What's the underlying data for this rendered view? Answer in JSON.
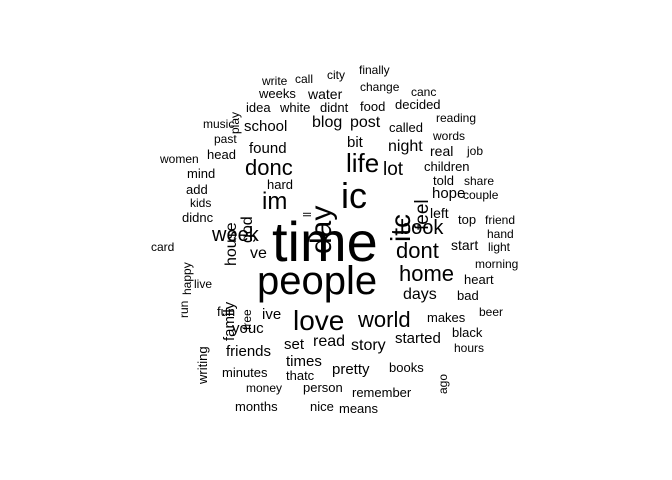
{
  "text_color": "#000000",
  "background_color": "#ffffff",
  "words": [
    {
      "text": "time"
    },
    {
      "text": "people"
    },
    {
      "text": "ic"
    },
    {
      "text": "day"
    },
    {
      "text": "love"
    },
    {
      "text": "life"
    },
    {
      "text": "itc"
    },
    {
      "text": "im"
    },
    {
      "text": "world"
    },
    {
      "text": "donc"
    },
    {
      "text": "home"
    },
    {
      "text": "dont"
    },
    {
      "text": "book"
    },
    {
      "text": "week"
    },
    {
      "text": "feel"
    },
    {
      "text": "lot"
    },
    {
      "text": "days"
    },
    {
      "text": "night"
    },
    {
      "text": "ve"
    },
    {
      "text": "house"
    },
    {
      "text": "god"
    },
    {
      "text": "story"
    },
    {
      "text": "read"
    },
    {
      "text": "blog"
    },
    {
      "text": "post"
    },
    {
      "text": "school"
    },
    {
      "text": "found"
    },
    {
      "text": "times"
    },
    {
      "text": "pretty"
    },
    {
      "text": "started"
    },
    {
      "text": "friends"
    },
    {
      "text": "youc"
    },
    {
      "text": "ive"
    },
    {
      "text": "family"
    },
    {
      "text": "hope"
    },
    {
      "text": "start"
    },
    {
      "text": "bit"
    },
    {
      "text": "set"
    },
    {
      "text": "left"
    },
    {
      "text": "real"
    },
    {
      "text": "books"
    },
    {
      "text": "children"
    },
    {
      "text": "told"
    },
    {
      "text": "makes"
    },
    {
      "text": "black"
    },
    {
      "text": "remember"
    },
    {
      "text": "person"
    },
    {
      "text": "thatc"
    },
    {
      "text": "minutes"
    },
    {
      "text": "money"
    },
    {
      "text": "months"
    },
    {
      "text": "nice"
    },
    {
      "text": "means"
    },
    {
      "text": "hours"
    },
    {
      "text": "ago"
    },
    {
      "text": "beer"
    },
    {
      "text": "bad"
    },
    {
      "text": "heart"
    },
    {
      "text": "morning"
    },
    {
      "text": "light"
    },
    {
      "text": "hand"
    },
    {
      "text": "friend"
    },
    {
      "text": "top"
    },
    {
      "text": "couple"
    },
    {
      "text": "share"
    },
    {
      "text": "job"
    },
    {
      "text": "words"
    },
    {
      "text": "reading"
    },
    {
      "text": "called"
    },
    {
      "text": "decided"
    },
    {
      "text": "food"
    },
    {
      "text": "didnt"
    },
    {
      "text": "white"
    },
    {
      "text": "idea"
    },
    {
      "text": "water"
    },
    {
      "text": "weeks"
    },
    {
      "text": "change"
    },
    {
      "text": "canc"
    },
    {
      "text": "finally"
    },
    {
      "text": "city"
    },
    {
      "text": "call"
    },
    {
      "text": "write"
    },
    {
      "text": "play"
    },
    {
      "text": "music"
    },
    {
      "text": "past"
    },
    {
      "text": "head"
    },
    {
      "text": "women"
    },
    {
      "text": "mind"
    },
    {
      "text": "add"
    },
    {
      "text": "kids"
    },
    {
      "text": "didnc"
    },
    {
      "text": "hard"
    },
    {
      "text": "card"
    },
    {
      "text": "happy"
    },
    {
      "text": "run"
    },
    {
      "text": "live"
    },
    {
      "text": "fun"
    },
    {
      "text": "free"
    },
    {
      "text": "writing"
    },
    {
      "text": "ll"
    }
  ]
}
